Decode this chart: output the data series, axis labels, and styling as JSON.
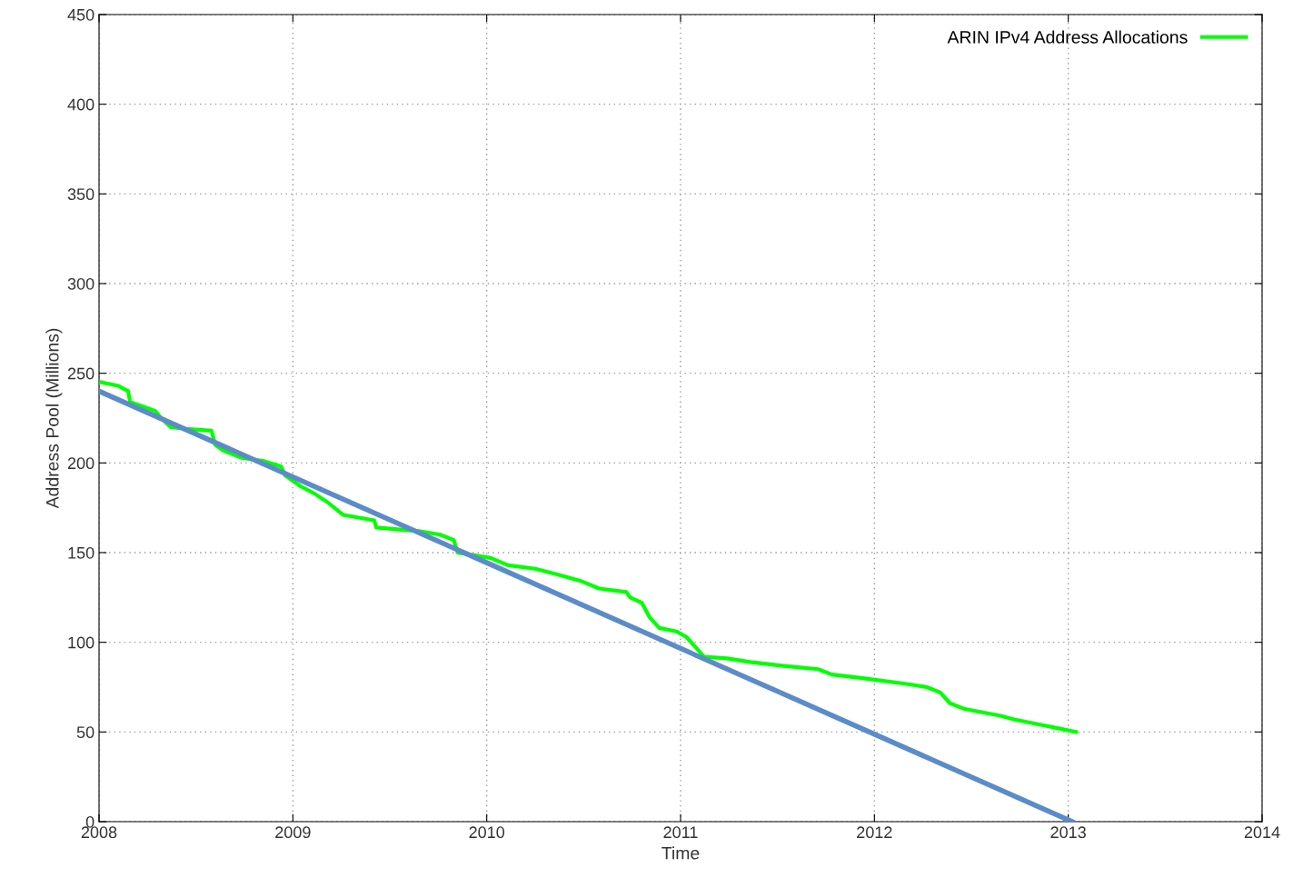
{
  "chart_data": {
    "type": "line",
    "xlabel": "Time",
    "ylabel": "Address Pool (Millions)",
    "xlim": [
      2008,
      2014
    ],
    "xticks": [
      2008,
      2009,
      2010,
      2011,
      2012,
      2013,
      2014
    ],
    "ylim": [
      0,
      450
    ],
    "yticks": [
      0,
      50,
      100,
      150,
      200,
      250,
      300,
      350,
      400,
      450
    ],
    "grid": true,
    "legend": "top right",
    "series": [
      {
        "name": "ARIN IPv4 Address Allocations",
        "color": "#00ff00",
        "x": [
          2008.01,
          2008.1,
          2008.15,
          2008.16,
          2008.24,
          2008.29,
          2008.32,
          2008.37,
          2008.45,
          2008.58,
          2008.6,
          2008.64,
          2008.73,
          2008.85,
          2008.94,
          2008.96,
          2009.04,
          2009.11,
          2009.18,
          2009.26,
          2009.42,
          2009.43,
          2009.65,
          2009.76,
          2009.83,
          2009.85,
          2010.02,
          2010.11,
          2010.25,
          2010.36,
          2010.49,
          2010.58,
          2010.72,
          2010.74,
          2010.8,
          2010.84,
          2010.89,
          2010.98,
          2011.03,
          2011.08,
          2011.12,
          2011.24,
          2011.36,
          2011.52,
          2011.71,
          2011.78,
          2011.94,
          2012.01,
          2012.15,
          2012.27,
          2012.34,
          2012.39,
          2012.46,
          2012.65,
          2012.72,
          2012.86,
          2012.95,
          2013.04
        ],
        "values": [
          245,
          243,
          240,
          234,
          231,
          229,
          225,
          220,
          219,
          218,
          210,
          207,
          203,
          201,
          198,
          193,
          187,
          183,
          178,
          171,
          168,
          164,
          162,
          160,
          157,
          150,
          147,
          143,
          141,
          138,
          134,
          130,
          128,
          125,
          122,
          114,
          108,
          106,
          103,
          97,
          92,
          91,
          89,
          87,
          85,
          82,
          80,
          79,
          77,
          75,
          72,
          66,
          63,
          59,
          57,
          54,
          52,
          50
        ]
      },
      {
        "color": "#5b8cc8",
        "x": [
          2008,
          2013.02
        ],
        "values": [
          240,
          0
        ]
      }
    ]
  }
}
